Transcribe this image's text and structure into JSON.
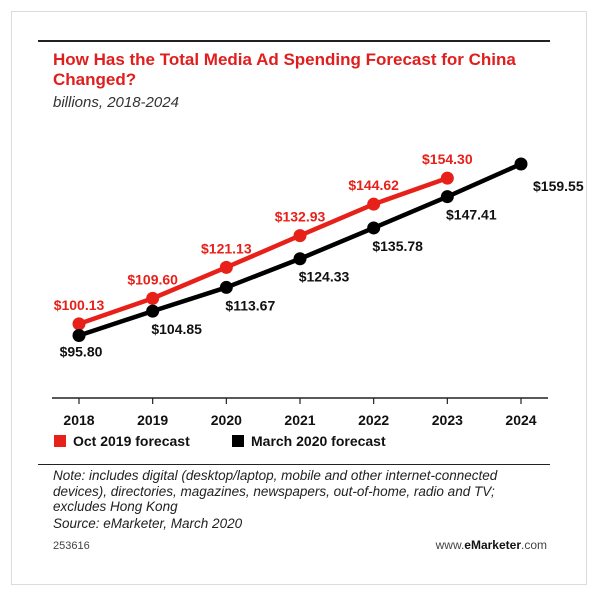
{
  "header": {
    "title": "How Has the Total Media Ad Spending Forecast for China Changed?",
    "subtitle": "billions, 2018-2024"
  },
  "footer": {
    "note": "Note: includes digital (desktop/laptop, mobile and other internet-connected devices), directories, magazines, newspapers, out-of-home, radio and TV; excludes Hong Kong",
    "source": "Source: eMarketer, March 2020",
    "chart_id": "253616",
    "brand_prefix": "www.",
    "brand_name": "eMarketer",
    "brand_suffix": ".com"
  },
  "chart_data": {
    "type": "line",
    "title": "How Has the Total Media Ad Spending Forecast for China Changed?",
    "subtitle": "billions, 2018-2024",
    "x": [
      "2018",
      "2019",
      "2020",
      "2021",
      "2022",
      "2023",
      "2024"
    ],
    "ylim": [
      90,
      165
    ],
    "grid": false,
    "legend_position": "bottom-left",
    "series": [
      {
        "name": "Oct 2019 forecast",
        "color": "#e8201a",
        "values": [
          100.13,
          109.6,
          121.13,
          132.93,
          144.62,
          154.3,
          null
        ],
        "labels": [
          "$100.13",
          "$109.60",
          "$121.13",
          "$132.93",
          "$144.62",
          "$154.30",
          null
        ]
      },
      {
        "name": "March 2020 forecast",
        "color": "#000000",
        "values": [
          95.8,
          104.85,
          113.67,
          124.33,
          135.78,
          147.41,
          159.55
        ],
        "labels": [
          "$95.80",
          "$104.85",
          "$113.67",
          "$124.33",
          "$135.78",
          "$147.41",
          "$159.55"
        ]
      }
    ]
  }
}
